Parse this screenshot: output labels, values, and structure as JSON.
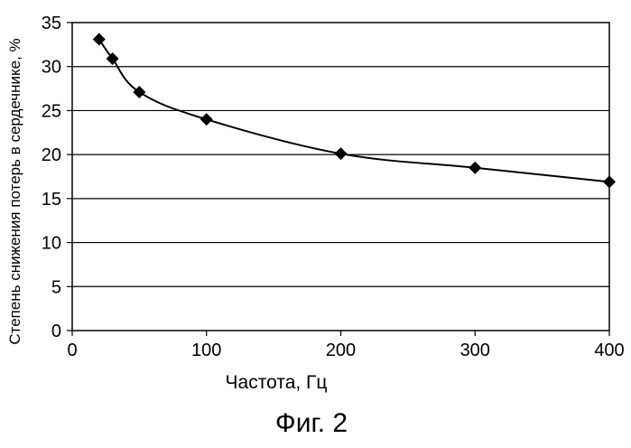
{
  "figure_caption": "Фиг. 2",
  "chart_data": {
    "type": "line",
    "title": "",
    "xlabel": "Частота, Гц",
    "ylabel": "Степень снижения потерь в сердечнике, %",
    "xlim": [
      0,
      400
    ],
    "ylim": [
      0,
      35
    ],
    "x_ticks": [
      0,
      100,
      200,
      300,
      400
    ],
    "y_ticks": [
      0,
      5,
      10,
      15,
      20,
      25,
      30,
      35
    ],
    "grid": "horizontal",
    "legend": "none",
    "series": [
      {
        "x": [
          20,
          30,
          50,
          100,
          200,
          300,
          400
        ],
        "values": [
          33.1,
          30.9,
          27.1,
          24.0,
          20.1,
          18.5,
          16.9
        ],
        "marker": "diamond",
        "color": "#000000"
      }
    ]
  }
}
